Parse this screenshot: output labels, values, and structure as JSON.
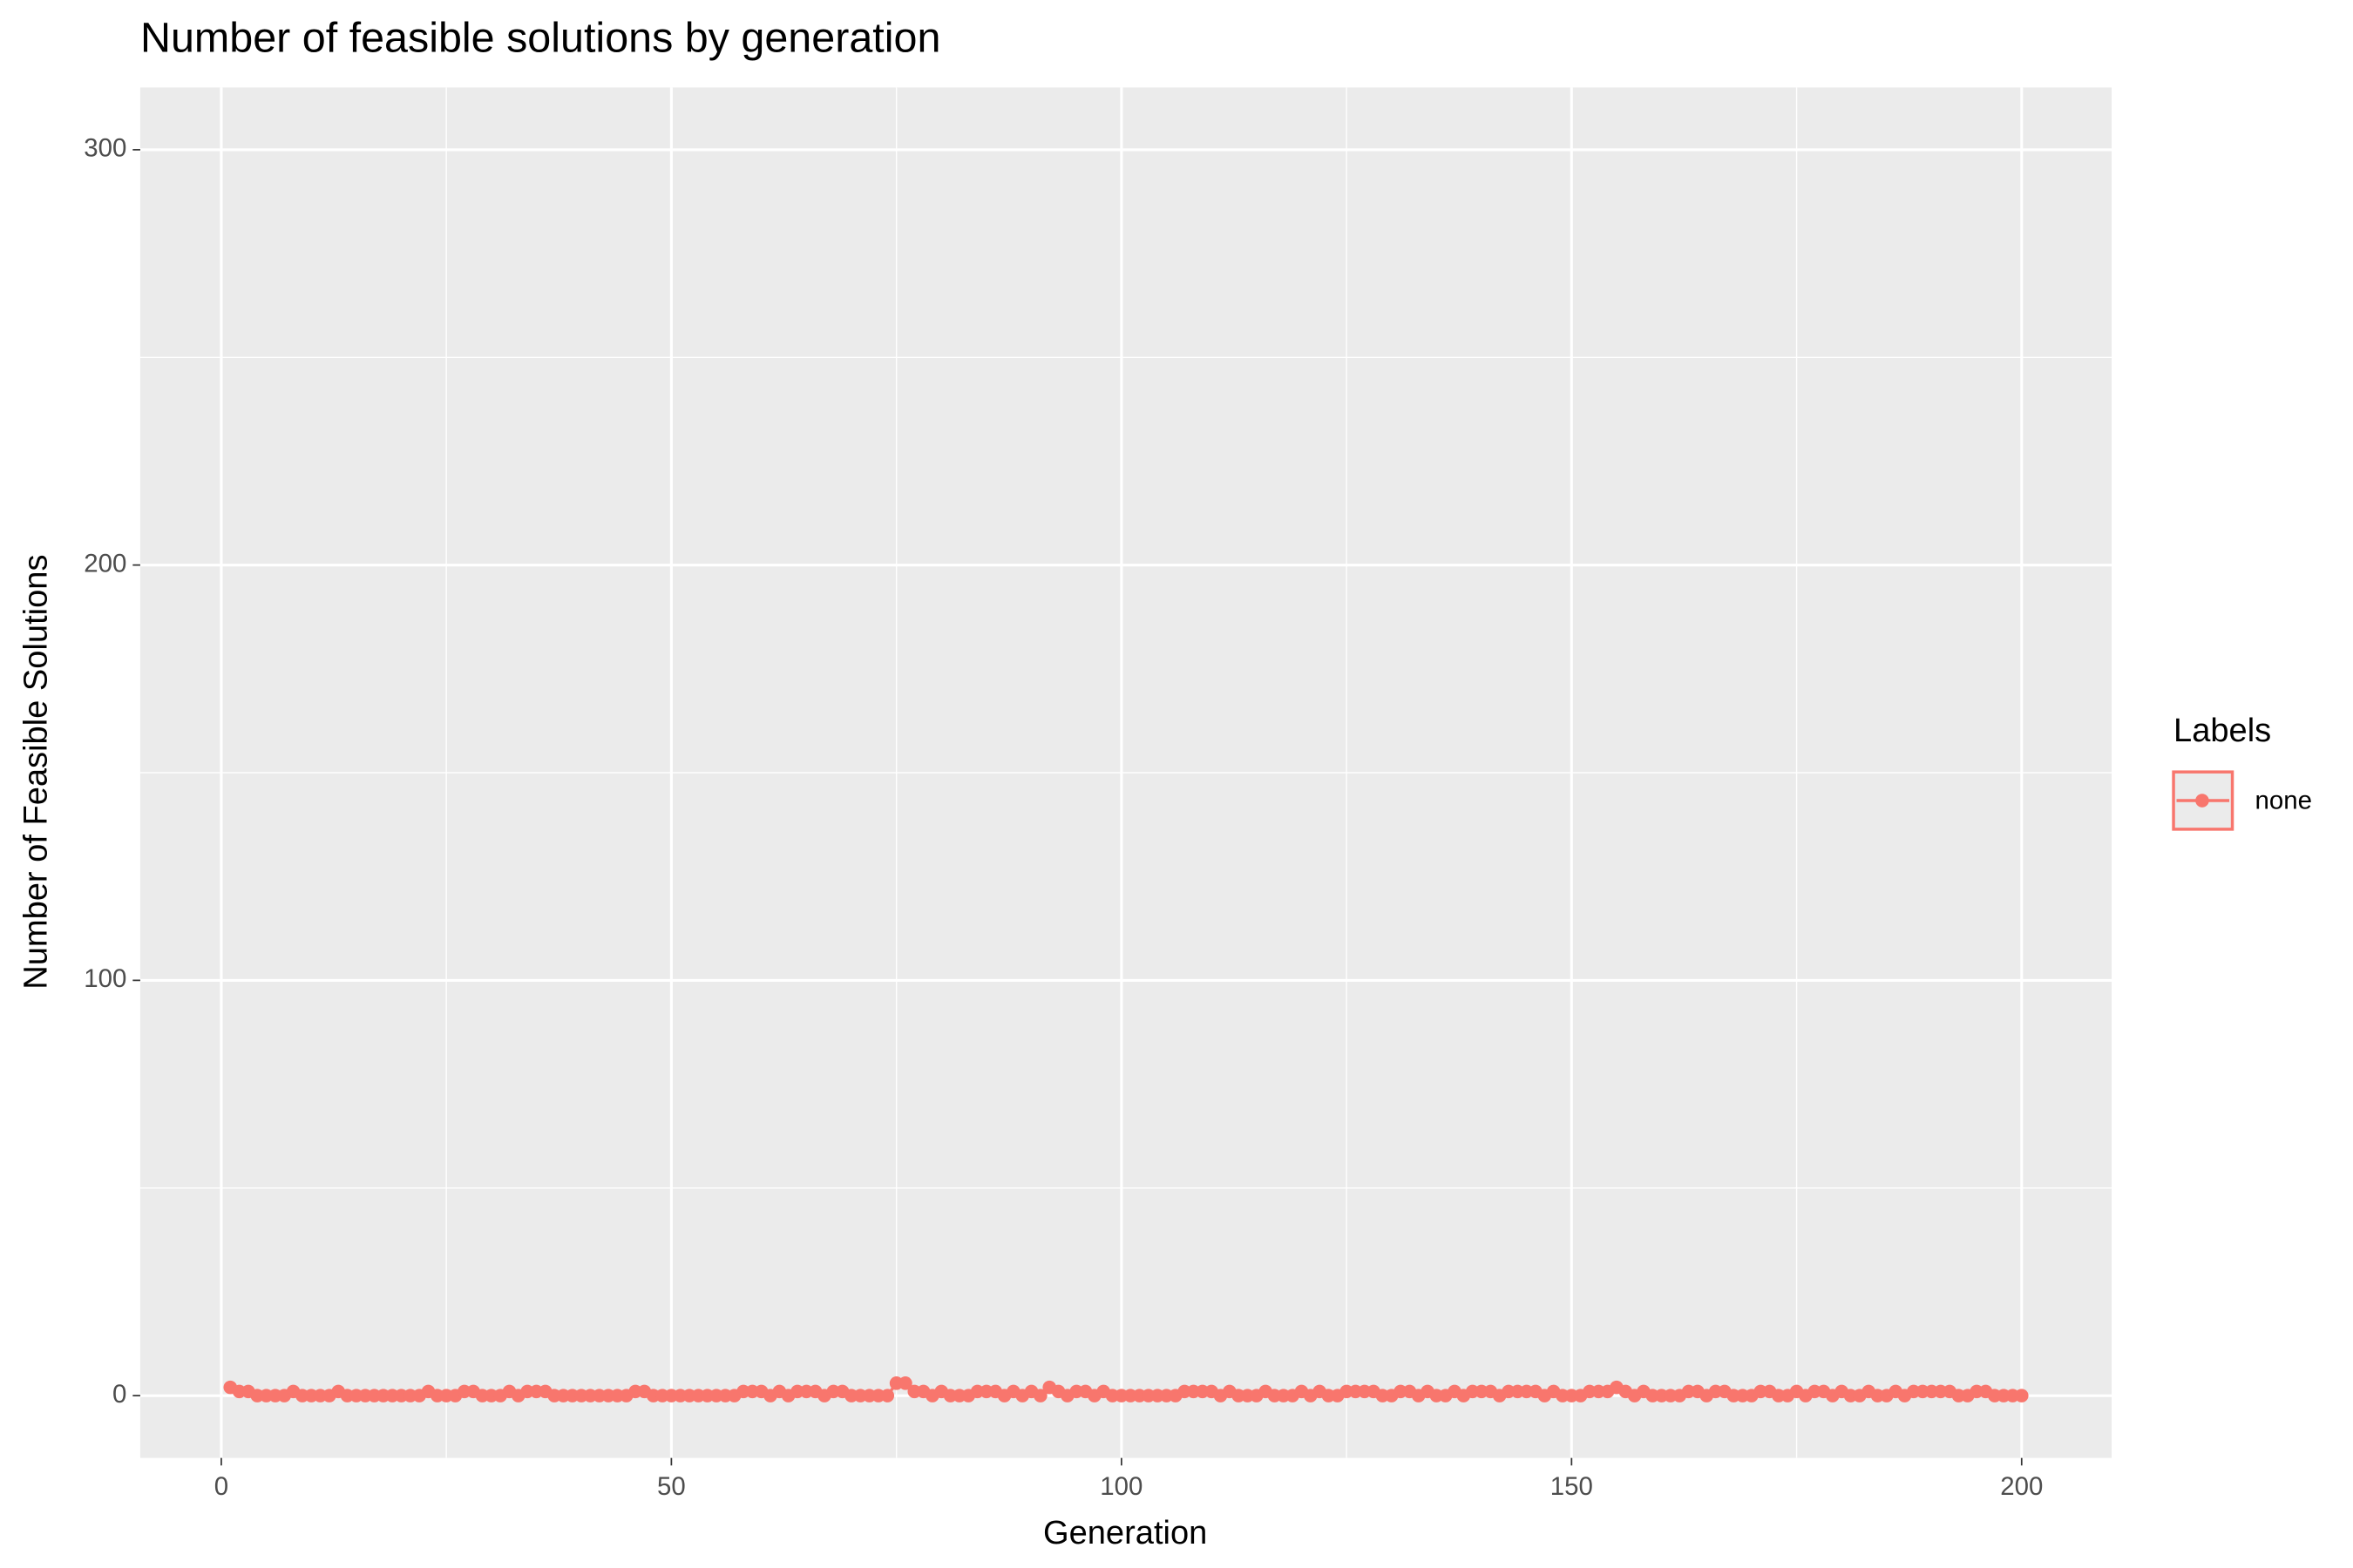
{
  "chart_data": {
    "type": "line",
    "title": "Number of feasible solutions by generation",
    "x_label": "Generation",
    "y_label": "Number of Feasible Solutions",
    "legend_title": "Labels",
    "x": [
      1,
      2,
      3,
      4,
      5,
      6,
      7,
      8,
      9,
      10,
      11,
      12,
      13,
      14,
      15,
      16,
      17,
      18,
      19,
      20,
      21,
      22,
      23,
      24,
      25,
      26,
      27,
      28,
      29,
      30,
      31,
      32,
      33,
      34,
      35,
      36,
      37,
      38,
      39,
      40,
      41,
      42,
      43,
      44,
      45,
      46,
      47,
      48,
      49,
      50,
      51,
      52,
      53,
      54,
      55,
      56,
      57,
      58,
      59,
      60,
      61,
      62,
      63,
      64,
      65,
      66,
      67,
      68,
      69,
      70,
      71,
      72,
      73,
      74,
      75,
      76,
      77,
      78,
      79,
      80,
      81,
      82,
      83,
      84,
      85,
      86,
      87,
      88,
      89,
      90,
      91,
      92,
      93,
      94,
      95,
      96,
      97,
      98,
      99,
      100,
      101,
      102,
      103,
      104,
      105,
      106,
      107,
      108,
      109,
      110,
      111,
      112,
      113,
      114,
      115,
      116,
      117,
      118,
      119,
      120,
      121,
      122,
      123,
      124,
      125,
      126,
      127,
      128,
      129,
      130,
      131,
      132,
      133,
      134,
      135,
      136,
      137,
      138,
      139,
      140,
      141,
      142,
      143,
      144,
      145,
      146,
      147,
      148,
      149,
      150,
      151,
      152,
      153,
      154,
      155,
      156,
      157,
      158,
      159,
      160,
      161,
      162,
      163,
      164,
      165,
      166,
      167,
      168,
      169,
      170,
      171,
      172,
      173,
      174,
      175,
      176,
      177,
      178,
      179,
      180,
      181,
      182,
      183,
      184,
      185,
      186,
      187,
      188,
      189,
      190,
      191,
      192,
      193,
      194,
      195,
      196,
      197,
      198,
      199,
      200
    ],
    "series": [
      {
        "name": "none",
        "color": "#F8766D",
        "values": [
          2,
          1,
          1,
          0,
          0,
          0,
          0,
          1,
          0,
          0,
          0,
          0,
          1,
          0,
          0,
          0,
          0,
          0,
          0,
          0,
          0,
          0,
          1,
          0,
          0,
          0,
          1,
          1,
          0,
          0,
          0,
          1,
          0,
          1,
          1,
          1,
          0,
          0,
          0,
          0,
          0,
          0,
          0,
          0,
          0,
          1,
          1,
          0,
          0,
          0,
          0,
          0,
          0,
          0,
          0,
          0,
          0,
          1,
          1,
          1,
          0,
          1,
          0,
          1,
          1,
          1,
          0,
          1,
          1,
          0,
          0,
          0,
          0,
          0,
          3,
          3,
          1,
          1,
          0,
          1,
          0,
          0,
          0,
          1,
          1,
          1,
          0,
          1,
          0,
          1,
          0,
          2,
          1,
          0,
          1,
          1,
          0,
          1,
          0,
          0,
          0,
          0,
          0,
          0,
          0,
          0,
          1,
          1,
          1,
          1,
          0,
          1,
          0,
          0,
          0,
          1,
          0,
          0,
          0,
          1,
          0,
          1,
          0,
          0,
          1,
          1,
          1,
          1,
          0,
          0,
          1,
          1,
          0,
          1,
          0,
          0,
          1,
          0,
          1,
          1,
          1,
          0,
          1,
          1,
          1,
          1,
          0,
          1,
          0,
          0,
          0,
          1,
          1,
          1,
          2,
          1,
          0,
          1,
          0,
          0,
          0,
          0,
          1,
          1,
          0,
          1,
          1,
          0,
          0,
          0,
          1,
          1,
          0,
          0,
          1,
          0,
          1,
          1,
          0,
          1,
          0,
          0,
          1,
          0,
          0,
          1,
          0,
          1,
          1,
          1,
          1,
          1,
          0,
          0,
          1,
          1,
          0,
          0,
          0,
          0
        ]
      }
    ],
    "xlim": [
      -9,
      210
    ],
    "ylim": [
      -15,
      315
    ],
    "xticks": [
      0,
      50,
      100,
      150,
      200
    ],
    "yticks": [
      0,
      100,
      200,
      300
    ],
    "minor_xticks": [
      25,
      75,
      125,
      175
    ],
    "minor_yticks": [
      50,
      150,
      250
    ],
    "grid": true,
    "legend": "right"
  }
}
